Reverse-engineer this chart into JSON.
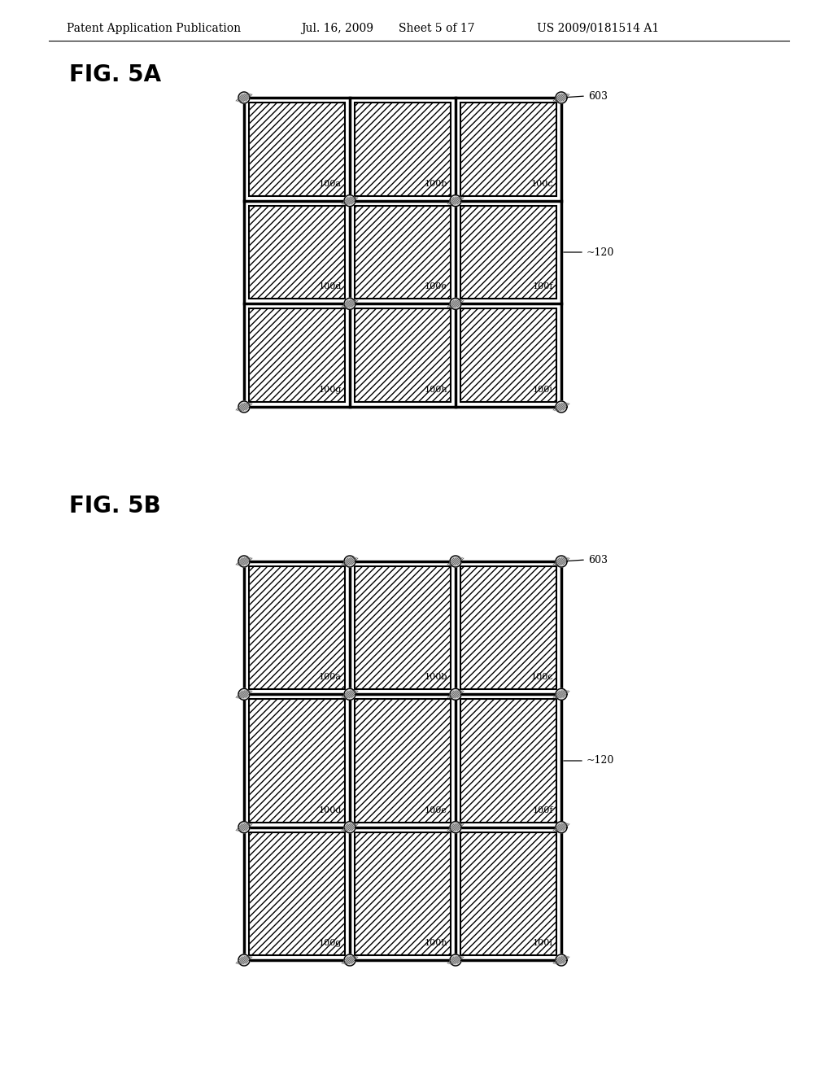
{
  "background_color": "#ffffff",
  "header_text": "Patent Application Publication",
  "header_date": "Jul. 16, 2009",
  "header_sheet": "Sheet 5 of 17",
  "header_patent": "US 2009/0181514 A1",
  "fig_label_5A": "FIG. 5A",
  "fig_label_5B": "FIG. 5B",
  "label_603": "603",
  "label_120": "~120",
  "cell_labels_row1": [
    "100a",
    "100b",
    "100c"
  ],
  "cell_labels_row2": [
    "100d",
    "100e",
    "100f"
  ],
  "cell_labels_row3": [
    "100g",
    "100h",
    "100i"
  ],
  "hatch_pattern": "////",
  "line_color": "#000000",
  "outer_frame_lw": 2.5,
  "inner_cell_lw": 1.5,
  "screw_r": 7
}
